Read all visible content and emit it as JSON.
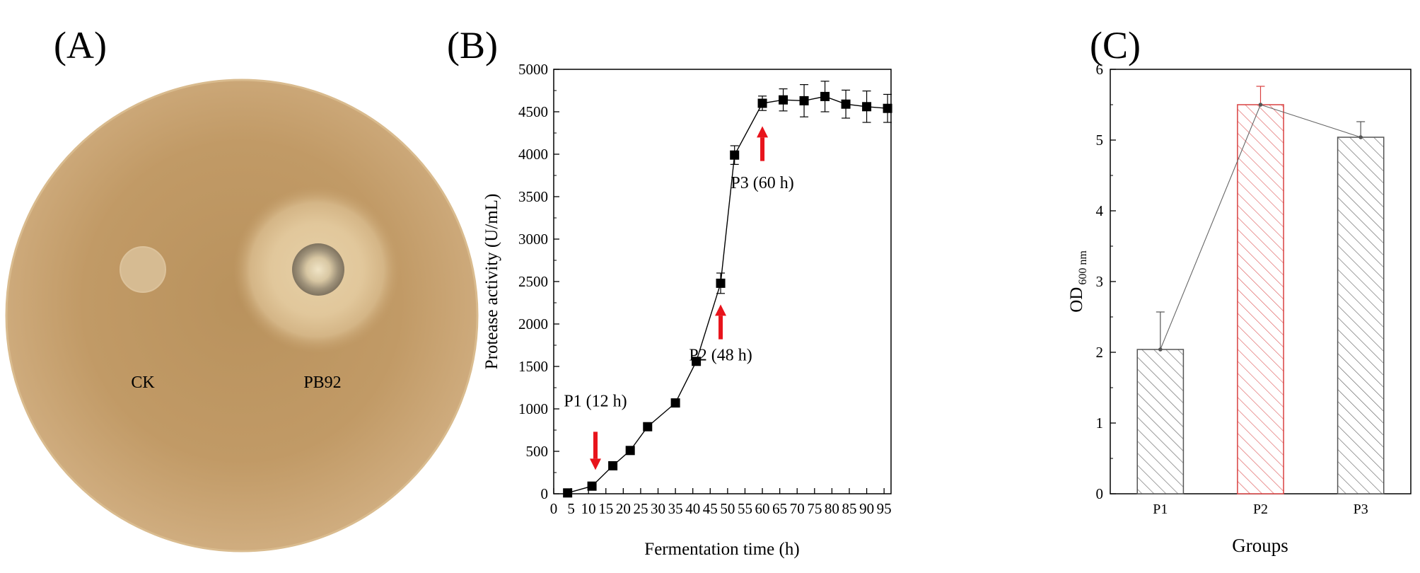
{
  "panels": {
    "a": {
      "label": "(A)",
      "spots": [
        {
          "name": "CK"
        },
        {
          "name": "PB92"
        }
      ]
    },
    "b": {
      "label": "(B)"
    },
    "c": {
      "label": "(C)"
    }
  },
  "chart_data": [
    {
      "id": "B",
      "type": "line",
      "xlabel": "Fermentation time (h)",
      "ylabel": "Protease activity (U/mL)",
      "xlim": [
        0,
        97
      ],
      "ylim": [
        0,
        5000
      ],
      "xticks": [
        0,
        5,
        10,
        15,
        20,
        25,
        30,
        35,
        40,
        45,
        50,
        55,
        60,
        65,
        70,
        75,
        80,
        85,
        90,
        95
      ],
      "yticks": [
        0,
        500,
        1000,
        1500,
        2000,
        2500,
        3000,
        3500,
        4000,
        4500,
        5000
      ],
      "series": [
        {
          "name": "Protease activity",
          "marker": "square",
          "color": "#000000",
          "x": [
            4,
            11,
            17,
            22,
            27,
            35,
            41,
            48,
            52,
            60,
            66,
            72,
            78,
            84,
            90,
            96
          ],
          "y": [
            10,
            90,
            330,
            510,
            790,
            1070,
            1560,
            2480,
            3990,
            4600,
            4640,
            4630,
            4680,
            4590,
            4560,
            4540
          ],
          "err": [
            0,
            0,
            0,
            0,
            0,
            0,
            0,
            120,
            110,
            85,
            130,
            190,
            180,
            165,
            185,
            165
          ]
        }
      ],
      "annotations": [
        {
          "text": "P1 (12 h)",
          "x": 12,
          "y": 1030,
          "arrow": "down",
          "arrow_from": 730,
          "arrow_to": 280
        },
        {
          "text": "P2 (48 h)",
          "x": 48,
          "y": 1570,
          "arrow": "up",
          "arrow_from": 1820,
          "arrow_to": 2230
        },
        {
          "text": "P3 (60 h)",
          "x": 60,
          "y": 3600,
          "arrow": "up",
          "arrow_from": 3920,
          "arrow_to": 4330
        }
      ],
      "arrow_color": "#e8141c"
    },
    {
      "id": "C",
      "type": "bar",
      "xlabel": "Groups",
      "ylabel": "OD",
      "ylabel_subscript": "600 nm",
      "ylim": [
        0,
        6
      ],
      "yticks": [
        0,
        1,
        2,
        3,
        4,
        5,
        6
      ],
      "categories": [
        "P1",
        "P2",
        "P3"
      ],
      "values": [
        2.04,
        5.5,
        5.04
      ],
      "err": [
        0.53,
        0.26,
        0.22
      ],
      "bar_colors": [
        "#555555",
        "#d94040",
        "#555555"
      ],
      "connect_line": true
    }
  ]
}
